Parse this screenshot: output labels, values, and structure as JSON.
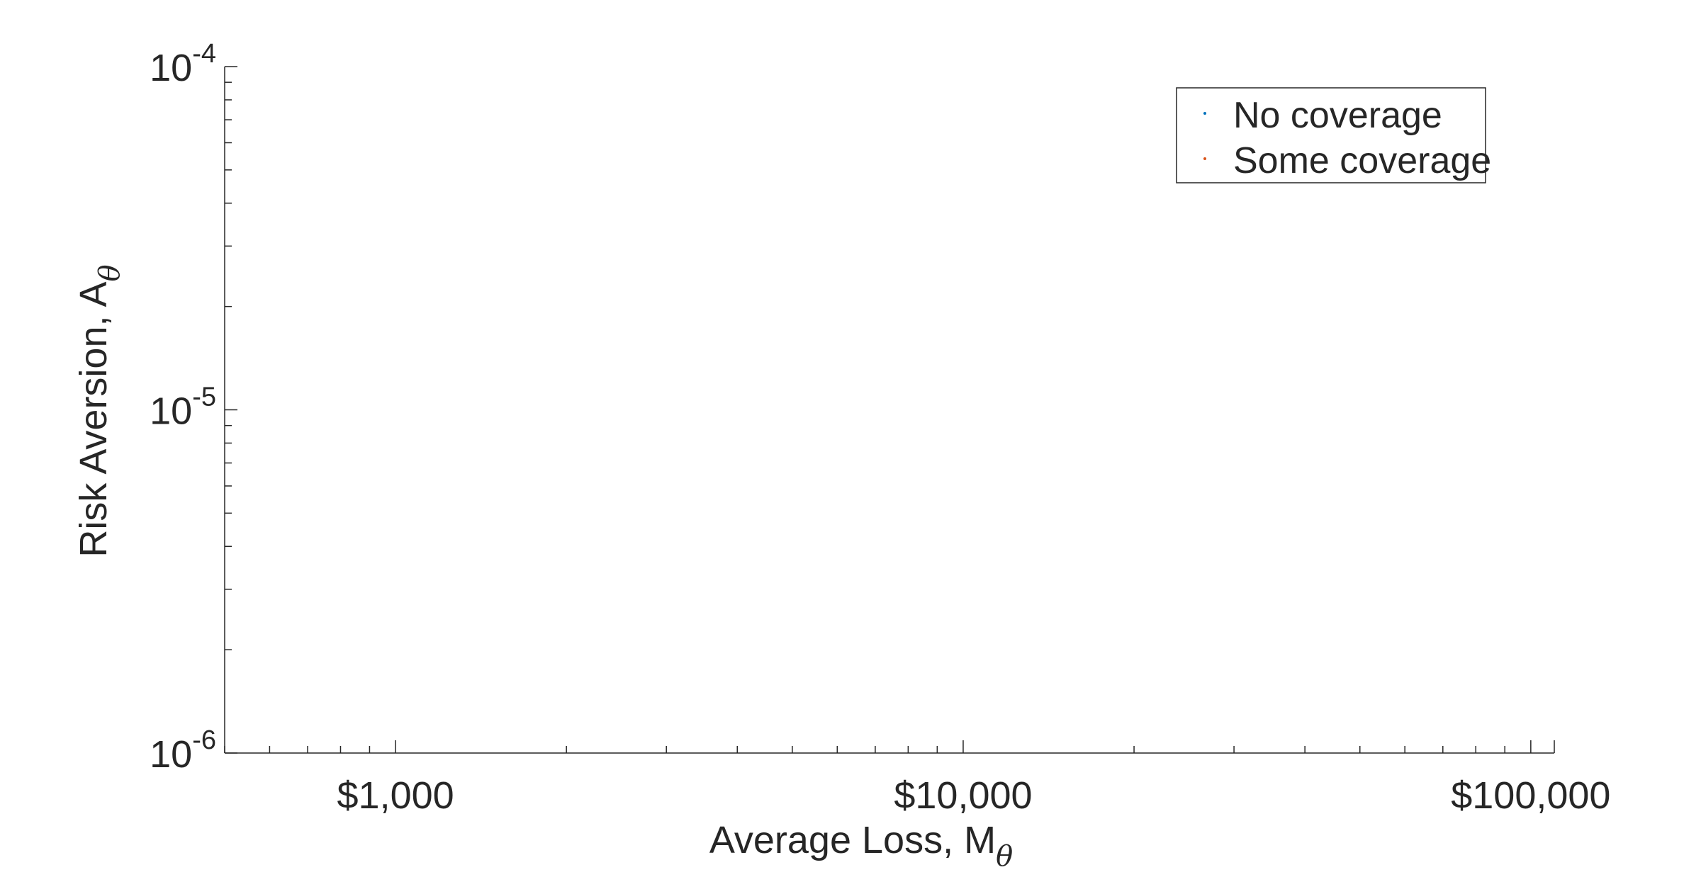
{
  "chart_data": {
    "type": "scatter",
    "title": "",
    "xlabel": {
      "main": "Average Loss,  M",
      "sub": "θ"
    },
    "ylabel": {
      "main": "Risk Aversion, A",
      "sub": "θ"
    },
    "xscale": "log",
    "yscale": "log",
    "xlim": [
      500,
      110000
    ],
    "ylim": [
      1e-06,
      0.0001
    ],
    "x_ticks": [
      {
        "value": 1000,
        "label": "$1,000"
      },
      {
        "value": 10000,
        "label": "$10,000"
      },
      {
        "value": 100000,
        "label": "$100,000"
      }
    ],
    "y_ticks": [
      {
        "value": 1e-06,
        "base": "10",
        "exp": "-6"
      },
      {
        "value": 1e-05,
        "base": "10",
        "exp": "-5"
      },
      {
        "value": 0.0001,
        "base": "10",
        "exp": "-4"
      }
    ],
    "series": [
      {
        "name": "No coverage",
        "color": "#0072BD",
        "points": []
      },
      {
        "name": "Some coverage",
        "color": "#D95319",
        "points": []
      }
    ],
    "legend": {
      "position": "top-right"
    },
    "grid": false
  }
}
